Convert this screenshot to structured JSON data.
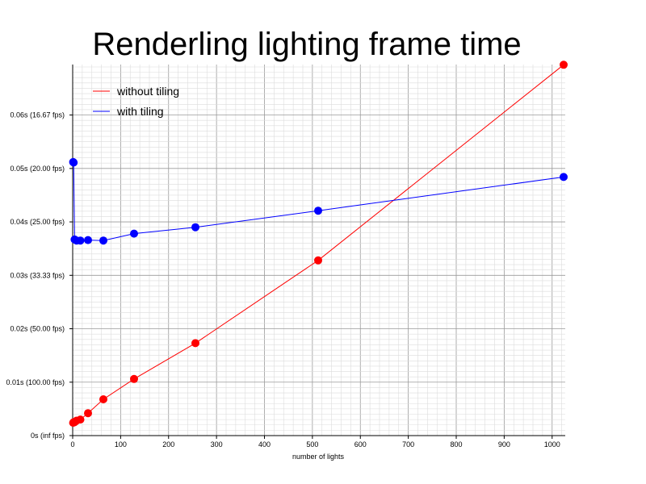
{
  "chart_data": {
    "type": "line",
    "title": "Renderling lighting frame time",
    "xlabel": "number of lights",
    "ylabel": "",
    "xlim": [
      0,
      1024
    ],
    "ylim": [
      0,
      0.068
    ],
    "x_ticks": [
      0,
      100,
      200,
      300,
      400,
      500,
      600,
      700,
      800,
      900,
      1000
    ],
    "x_tick_labels": [
      "0",
      "100",
      "200",
      "300",
      "400",
      "500",
      "600",
      "700",
      "800",
      "900",
      "1000"
    ],
    "y_ticks": [
      0,
      0.01,
      0.02,
      0.03,
      0.04,
      0.05,
      0.06
    ],
    "y_tick_labels": [
      "0s (inf fps)",
      "0.01s (100.00 fps)",
      "0.02s (50.00 fps)",
      "0.03s (33.33 fps)",
      "0.04s (25.00 fps)",
      "0.05s (20.00 fps)",
      "0.06s (16.67 fps)"
    ],
    "grid": true,
    "legend_position": "top-left",
    "series": [
      {
        "name": "without tiling",
        "color": "#ff0000",
        "x": [
          1,
          2,
          4,
          8,
          16,
          32,
          64,
          128,
          256,
          512,
          1024
        ],
        "y": [
          0.0024,
          0.0025,
          0.0025,
          0.0028,
          0.003,
          0.0042,
          0.0068,
          0.0106,
          0.0173,
          0.0328,
          0.0694
        ]
      },
      {
        "name": "with tiling",
        "color": "#0000ff",
        "x": [
          1,
          2,
          4,
          8,
          16,
          32,
          64,
          128,
          256,
          512,
          1024
        ],
        "y": [
          0.0512,
          0.0511,
          0.0367,
          0.0365,
          0.0365,
          0.0366,
          0.0365,
          0.0378,
          0.039,
          0.0421,
          0.0484
        ]
      }
    ]
  }
}
